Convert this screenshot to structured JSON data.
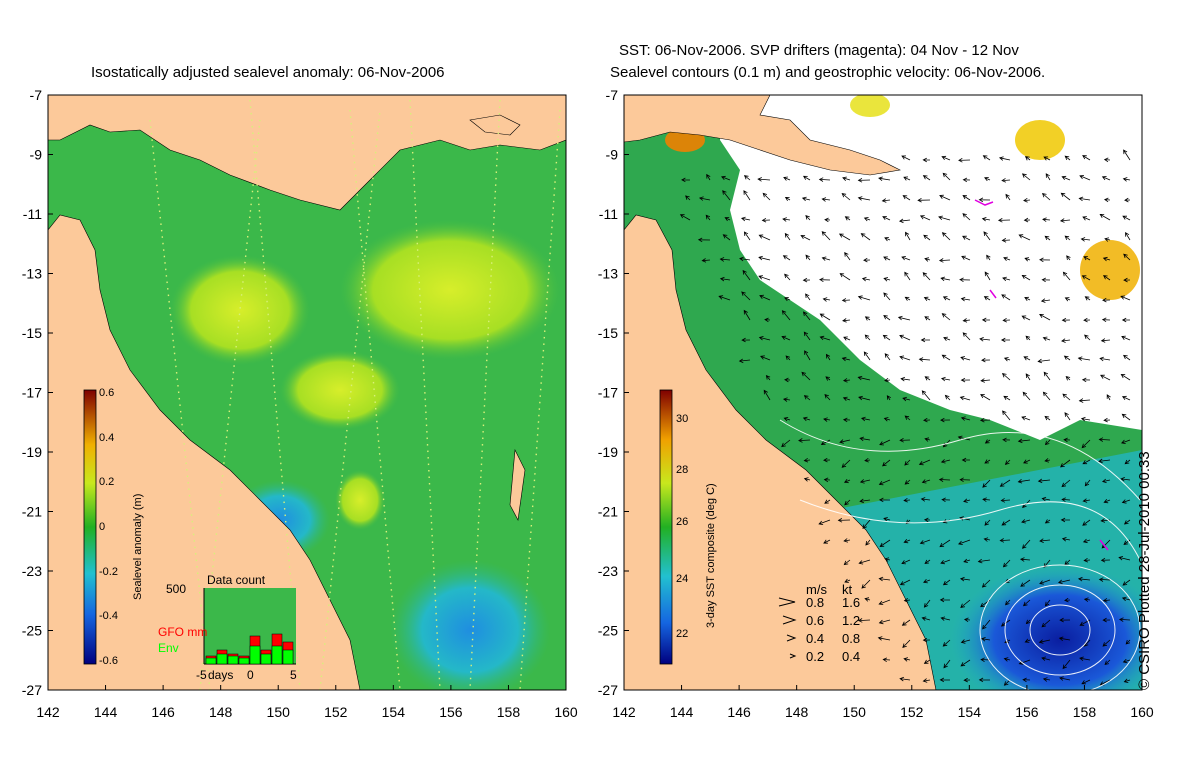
{
  "left_panel": {
    "title": "Isostatically adjusted sealevel anomaly: 06-Nov-2006",
    "colorbar": {
      "label": "Sealevel anomaly (m)",
      "ticks": [
        "0.6",
        "0.4",
        "0.2",
        "0",
        "-0.2",
        "-0.4",
        "-0.6"
      ]
    },
    "data_count": {
      "title": "Data count",
      "ymax_label": "500",
      "gfo_label": "GFO mm",
      "env_label": "Env",
      "x_left": "-5",
      "x_days": "days",
      "x_mid": "0",
      "x_right": "5",
      "gfo_color": "#ff0000",
      "env_color": "#00ff00"
    }
  },
  "right_panel": {
    "title_line1": "SST: 06-Nov-2006. SVP drifters (magenta): 04 Nov - 12 Nov",
    "title_line2": "Sealevel contours (0.1 m) and geostrophic velocity: 06-Nov-2006.",
    "colorbar": {
      "label": "3-day SST composite (deg C)",
      "ticks": [
        "30",
        "28",
        "26",
        "24",
        "22"
      ]
    },
    "speed_legend": {
      "header_ms": "m/s",
      "header_kt": "kt",
      "rows": [
        {
          "ms": "0.8",
          "kt": "1.6"
        },
        {
          "ms": "0.6",
          "kt": "1.2"
        },
        {
          "ms": "0.4",
          "kt": "0.8"
        },
        {
          "ms": "0.2",
          "kt": "0.4"
        }
      ]
    },
    "credit": "© CSIRO Plotted 28-Jul-2010 00:33"
  },
  "axes": {
    "x_ticks": [
      "142",
      "144",
      "146",
      "148",
      "150",
      "152",
      "154",
      "156",
      "158",
      "160"
    ],
    "y_ticks": [
      "-7",
      "-9",
      "-11",
      "-13",
      "-15",
      "-17",
      "-19",
      "-21",
      "-23",
      "-25",
      "-27"
    ],
    "lon_range": [
      142,
      160
    ],
    "lat_range": [
      -27,
      -7
    ]
  },
  "colors": {
    "land": "#fcc99a",
    "anomaly_base": "#3ab83a",
    "anomaly_high": "#b5e61d",
    "anomaly_low": "#22b4c8",
    "sst_cloud": "#ffffff",
    "sst_warm": "#2fa84f",
    "sst_cool": "#1f5fd0"
  }
}
